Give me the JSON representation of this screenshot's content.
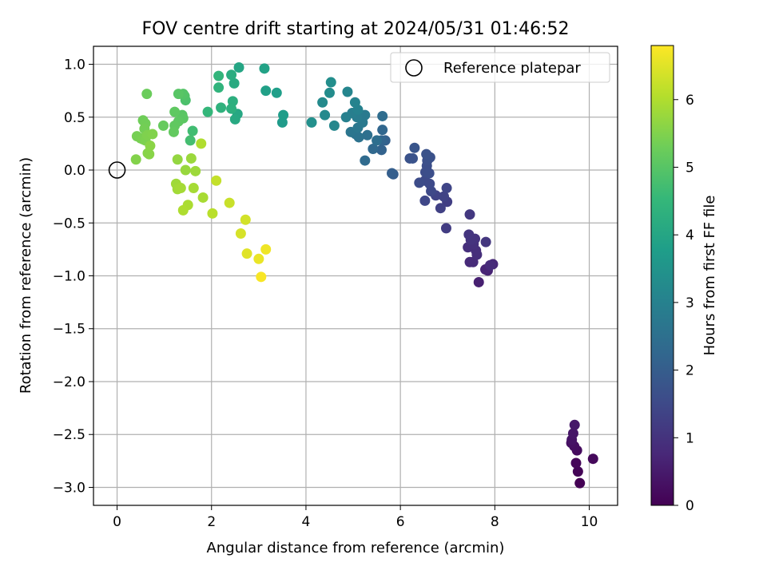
{
  "chart_data": {
    "type": "scatter",
    "title": "FOV centre drift starting at 2024/05/31 01:46:52",
    "xlabel": "Angular distance from reference (arcmin)",
    "ylabel": "Rotation from reference (arcmin)",
    "xlim": [
      -0.5,
      10.6
    ],
    "ylim": [
      -3.17,
      1.17
    ],
    "xticks": [
      0,
      2,
      4,
      6,
      8,
      10
    ],
    "xtick_labels": [
      "0",
      "2",
      "4",
      "6",
      "8",
      "10"
    ],
    "yticks": [
      -3.0,
      -2.5,
      -2.0,
      -1.5,
      -1.0,
      -0.5,
      0.0,
      0.5,
      1.0
    ],
    "ytick_labels": [
      "−3.0",
      "−2.5",
      "−2.0",
      "−1.5",
      "−1.0",
      "−0.5",
      "0.0",
      "0.5",
      "1.0"
    ],
    "grid": true,
    "legend": {
      "position": "top-right",
      "entries": [
        "Reference platepar"
      ]
    },
    "reference_point": {
      "x": 0.0,
      "y": 0.0,
      "label": "Reference platepar"
    },
    "colorbar": {
      "label": "Hours from first FF file",
      "colormap": "viridis",
      "range": [
        0,
        6.8
      ],
      "ticks": [
        0,
        1,
        2,
        3,
        4,
        5,
        6
      ],
      "tick_labels": [
        "0",
        "1",
        "2",
        "3",
        "4",
        "5",
        "6"
      ]
    },
    "points": [
      [
        9.8,
        -2.96,
        0.0
      ],
      [
        9.76,
        -2.85,
        0.05
      ],
      [
        9.72,
        -2.77,
        0.1
      ],
      [
        10.08,
        -2.73,
        0.15
      ],
      [
        9.74,
        -2.65,
        0.2
      ],
      [
        9.68,
        -2.61,
        0.25
      ],
      [
        9.62,
        -2.58,
        0.3
      ],
      [
        9.63,
        -2.55,
        0.35
      ],
      [
        9.66,
        -2.49,
        0.4
      ],
      [
        9.69,
        -2.41,
        0.45
      ],
      [
        7.66,
        -1.06,
        0.6
      ],
      [
        7.85,
        -0.95,
        0.65
      ],
      [
        7.8,
        -0.94,
        0.7
      ],
      [
        7.96,
        -0.89,
        0.75
      ],
      [
        7.47,
        -0.87,
        0.8
      ],
      [
        7.54,
        -0.87,
        0.82
      ],
      [
        7.9,
        -0.9,
        0.85
      ],
      [
        7.62,
        -0.8,
        0.88
      ],
      [
        7.6,
        -0.76,
        0.9
      ],
      [
        7.43,
        -0.73,
        0.92
      ],
      [
        7.55,
        -0.7,
        0.95
      ],
      [
        7.58,
        -0.65,
        1.0
      ],
      [
        7.49,
        -0.66,
        1.02
      ],
      [
        7.45,
        -0.61,
        1.05
      ],
      [
        7.81,
        -0.68,
        1.08
      ],
      [
        7.47,
        -0.42,
        1.1
      ],
      [
        6.97,
        -0.55,
        1.2
      ],
      [
        6.99,
        -0.3,
        1.25
      ],
      [
        6.85,
        -0.36,
        1.3
      ],
      [
        6.92,
        -0.25,
        1.35
      ],
      [
        6.75,
        -0.24,
        1.38
      ],
      [
        6.98,
        -0.17,
        1.4
      ],
      [
        6.52,
        -0.29,
        1.45
      ],
      [
        6.65,
        -0.2,
        1.48
      ],
      [
        6.52,
        -0.1,
        1.5
      ],
      [
        6.62,
        -0.13,
        1.52
      ],
      [
        6.4,
        -0.12,
        1.55
      ],
      [
        6.53,
        -0.02,
        1.58
      ],
      [
        6.61,
        -0.03,
        1.6
      ],
      [
        6.56,
        0.04,
        1.62
      ],
      [
        6.57,
        0.09,
        1.65
      ],
      [
        6.63,
        0.12,
        1.68
      ],
      [
        6.55,
        0.15,
        1.7
      ],
      [
        6.2,
        0.11,
        1.72
      ],
      [
        6.26,
        0.11,
        1.75
      ],
      [
        6.3,
        0.21,
        1.78
      ],
      [
        5.85,
        -0.04,
        2.0
      ],
      [
        5.82,
        -0.03,
        2.05
      ],
      [
        5.68,
        0.28,
        2.1
      ],
      [
        5.6,
        0.19,
        2.15
      ],
      [
        5.6,
        0.28,
        2.2
      ],
      [
        5.62,
        0.38,
        2.25
      ],
      [
        5.42,
        0.2,
        2.3
      ],
      [
        5.25,
        0.09,
        2.35
      ],
      [
        5.62,
        0.51,
        2.4
      ],
      [
        5.5,
        0.28,
        2.45
      ],
      [
        5.3,
        0.33,
        2.5
      ],
      [
        5.12,
        0.31,
        2.55
      ],
      [
        5.05,
        0.34,
        2.6
      ],
      [
        4.95,
        0.36,
        2.65
      ],
      [
        5.1,
        0.4,
        2.7
      ],
      [
        5.2,
        0.45,
        2.75
      ],
      [
        5.25,
        0.52,
        2.8
      ],
      [
        5.08,
        0.5,
        2.85
      ],
      [
        4.98,
        0.54,
        2.9
      ],
      [
        4.85,
        0.5,
        2.95
      ],
      [
        5.1,
        0.57,
        3.0
      ],
      [
        5.04,
        0.64,
        3.05
      ],
      [
        4.88,
        0.74,
        3.1
      ],
      [
        4.6,
        0.42,
        3.15
      ],
      [
        4.4,
        0.52,
        3.2
      ],
      [
        4.35,
        0.64,
        3.25
      ],
      [
        4.5,
        0.73,
        3.3
      ],
      [
        4.53,
        0.83,
        3.35
      ],
      [
        4.12,
        0.45,
        3.4
      ],
      [
        3.5,
        0.45,
        3.7
      ],
      [
        3.52,
        0.52,
        3.75
      ],
      [
        3.38,
        0.73,
        3.8
      ],
      [
        3.15,
        0.75,
        3.85
      ],
      [
        3.12,
        0.96,
        3.9
      ],
      [
        2.58,
        0.97,
        4.0
      ],
      [
        2.55,
        0.53,
        4.05
      ],
      [
        2.5,
        0.48,
        4.1
      ],
      [
        2.48,
        0.82,
        4.15
      ],
      [
        2.42,
        0.9,
        4.2
      ],
      [
        2.45,
        0.65,
        4.25
      ],
      [
        2.42,
        0.58,
        4.3
      ],
      [
        2.2,
        0.59,
        4.35
      ],
      [
        2.15,
        0.78,
        4.4
      ],
      [
        2.15,
        0.89,
        4.45
      ],
      [
        1.92,
        0.55,
        4.5
      ],
      [
        1.6,
        0.37,
        4.7
      ],
      [
        1.55,
        0.28,
        4.75
      ],
      [
        1.45,
        0.66,
        4.85
      ],
      [
        1.43,
        0.7,
        4.9
      ],
      [
        1.4,
        0.72,
        4.95
      ],
      [
        1.3,
        0.72,
        5.0
      ],
      [
        1.38,
        0.52,
        5.02
      ],
      [
        1.4,
        0.49,
        5.05
      ],
      [
        1.3,
        0.46,
        5.08
      ],
      [
        1.22,
        0.55,
        5.1
      ],
      [
        1.22,
        0.42,
        5.12
      ],
      [
        1.2,
        0.36,
        5.15
      ],
      [
        0.98,
        0.42,
        5.2
      ],
      [
        0.63,
        0.72,
        5.25
      ],
      [
        0.55,
        0.47,
        5.3
      ],
      [
        0.6,
        0.44,
        5.32
      ],
      [
        0.58,
        0.39,
        5.35
      ],
      [
        0.42,
        0.32,
        5.38
      ],
      [
        0.5,
        0.3,
        5.4
      ],
      [
        0.55,
        0.29,
        5.42
      ],
      [
        0.6,
        0.28,
        5.45
      ],
      [
        0.64,
        0.33,
        5.48
      ],
      [
        0.75,
        0.34,
        5.5
      ],
      [
        0.4,
        0.1,
        5.52
      ],
      [
        0.65,
        0.16,
        5.55
      ],
      [
        0.68,
        0.15,
        5.58
      ],
      [
        0.7,
        0.23,
        5.6
      ],
      [
        1.28,
        0.1,
        5.7
      ],
      [
        1.45,
        0.0,
        5.75
      ],
      [
        1.57,
        0.11,
        5.78
      ],
      [
        1.66,
        -0.01,
        5.8
      ],
      [
        1.25,
        -0.13,
        5.82
      ],
      [
        1.28,
        -0.18,
        5.85
      ],
      [
        1.35,
        -0.17,
        5.88
      ],
      [
        1.62,
        -0.17,
        5.9
      ],
      [
        1.82,
        -0.26,
        5.92
      ],
      [
        1.5,
        -0.33,
        5.95
      ],
      [
        1.4,
        -0.38,
        5.98
      ],
      [
        1.78,
        0.25,
        6.0
      ],
      [
        2.02,
        -0.41,
        6.1
      ],
      [
        2.1,
        -0.1,
        6.2
      ],
      [
        2.38,
        -0.31,
        6.25
      ],
      [
        2.72,
        -0.47,
        6.35
      ],
      [
        2.62,
        -0.6,
        6.4
      ],
      [
        2.75,
        -0.79,
        6.5
      ],
      [
        3.0,
        -0.84,
        6.6
      ],
      [
        3.15,
        -0.75,
        6.65
      ],
      [
        3.05,
        -1.01,
        6.75
      ]
    ]
  }
}
